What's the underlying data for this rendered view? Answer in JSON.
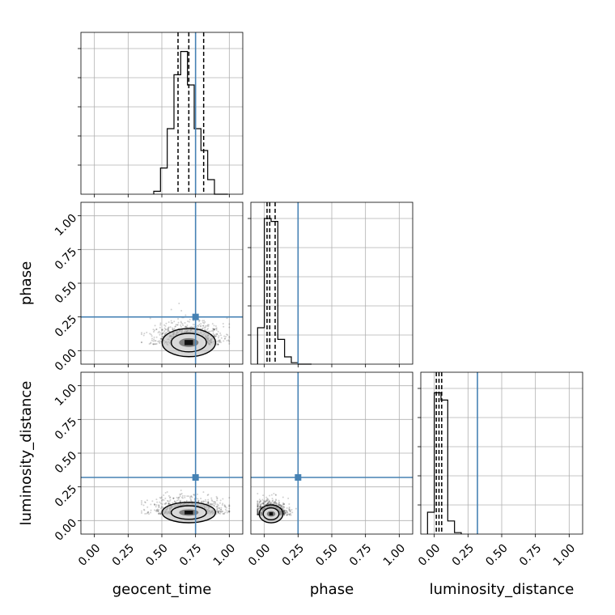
{
  "chart_data": {
    "type": "corner",
    "parameters": [
      "geocent_time",
      "phase",
      "luminosity_distance"
    ],
    "truths": {
      "geocent_time": 0.75,
      "phase": 0.25,
      "luminosity_distance": 0.32
    },
    "axis_range": [
      -0.1,
      1.1
    ],
    "ticks": [
      0.0,
      0.25,
      0.5,
      0.75,
      1.0
    ],
    "tick_labels": [
      "0.00",
      "0.25",
      "0.50",
      "0.75",
      "1.00"
    ],
    "grid": true,
    "truth_color": "#4682b4",
    "histograms": [
      {
        "parameter": "geocent_time",
        "edges": [
          0.44,
          0.49,
          0.54,
          0.59,
          0.64,
          0.69,
          0.74,
          0.79,
          0.84,
          0.89,
          0.94,
          0.99
        ],
        "values": [
          0.02,
          0.18,
          0.45,
          0.82,
          0.98,
          0.75,
          0.45,
          0.3,
          0.1,
          0.0,
          0.0
        ],
        "quantiles": [
          0.62,
          0.7,
          0.81
        ]
      },
      {
        "parameter": "phase",
        "edges": [
          -0.05,
          0.0,
          0.05,
          0.1,
          0.15,
          0.2,
          0.25,
          0.3,
          0.35
        ],
        "values": [
          0.25,
          1.0,
          0.98,
          0.17,
          0.05,
          0.01,
          0.0,
          0.0
        ],
        "quantiles": [
          0.02,
          0.04,
          0.08
        ]
      },
      {
        "parameter": "luminosity_distance",
        "edges": [
          -0.05,
          0.0,
          0.05,
          0.1,
          0.15,
          0.2
        ],
        "values": [
          0.15,
          0.97,
          0.92,
          0.09,
          0.01
        ],
        "quantiles": [
          0.015,
          0.035,
          0.055
        ]
      }
    ],
    "contours": [
      {
        "x": "geocent_time",
        "y": "phase",
        "center": [
          0.7,
          0.06
        ],
        "spread": [
          0.09,
          0.055
        ],
        "xrange": [
          0.35,
          1.0
        ],
        "yrange": [
          -0.05,
          0.35
        ]
      },
      {
        "x": "geocent_time",
        "y": "luminosity_distance",
        "center": [
          0.7,
          0.06
        ],
        "spread": [
          0.09,
          0.04
        ],
        "xrange": [
          0.35,
          1.0
        ],
        "yrange": [
          -0.05,
          0.25
        ]
      },
      {
        "x": "phase",
        "y": "luminosity_distance",
        "center": [
          0.05,
          0.05
        ],
        "spread": [
          0.04,
          0.035
        ],
        "xrange": [
          -0.05,
          0.4
        ],
        "yrange": [
          -0.05,
          0.2
        ]
      }
    ]
  }
}
